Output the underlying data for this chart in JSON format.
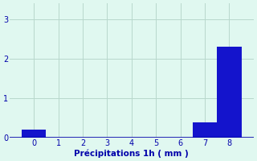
{
  "values": [
    0.2,
    0,
    0,
    0,
    0,
    0,
    0,
    0.4,
    2.3,
    0
  ],
  "bin_edges": [
    -0.5,
    0.5,
    1.5,
    2.5,
    3.5,
    4.5,
    5.5,
    6.5,
    7.5,
    8.5,
    9.5
  ],
  "bar_centers": [
    0,
    1,
    2,
    3,
    4,
    5,
    6,
    7,
    8,
    9
  ],
  "bar_color": "#1414cc",
  "xlabel": "Précipitations 1h ( mm )",
  "ylim": [
    0,
    3.4
  ],
  "xlim": [
    -1.0,
    9.0
  ],
  "yticks": [
    0,
    1,
    2,
    3
  ],
  "xtick_positions": [
    0,
    1,
    2,
    3,
    4,
    5,
    6,
    7,
    8
  ],
  "xtick_labels": [
    "0",
    "1",
    "2",
    "3",
    "4",
    "5",
    "6",
    "7",
    "8"
  ],
  "background_color": "#e0f8f0",
  "grid_color": "#b8d8cc",
  "bar_width": 1.0
}
